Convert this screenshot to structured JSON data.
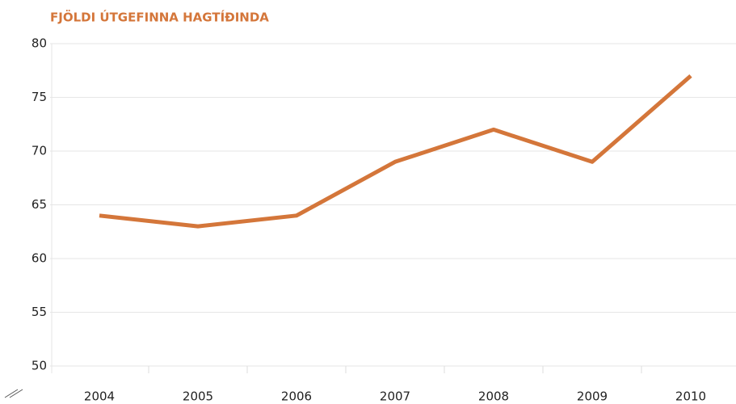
{
  "chart_data": {
    "type": "line",
    "title": "FJÖLDI ÚTGEFINNA HAGTÍÐINDA",
    "categories": [
      "2004",
      "2005",
      "2006",
      "2007",
      "2008",
      "2009",
      "2010"
    ],
    "values": [
      64,
      63,
      64,
      69,
      72,
      69,
      77
    ],
    "color": "#d4763a",
    "ylim": [
      50,
      80
    ],
    "yticks": [
      50,
      55,
      60,
      65,
      70,
      75,
      80
    ],
    "grid": true
  }
}
